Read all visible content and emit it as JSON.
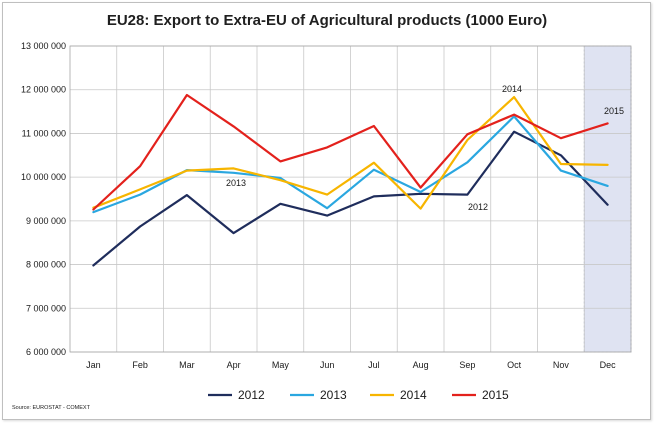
{
  "chart_data": {
    "type": "line",
    "title": "EU28: Export to Extra-EU of Agricultural products (1000 Euro)",
    "source": "Source: EUROSTAT - COMEXT",
    "categories": [
      "Jan",
      "Feb",
      "Mar",
      "Apr",
      "May",
      "Jun",
      "Jul",
      "Aug",
      "Sep",
      "Oct",
      "Nov",
      "Dec"
    ],
    "ylim": [
      6000000,
      13000000
    ],
    "yticks": [
      6000000,
      7000000,
      8000000,
      9000000,
      10000000,
      11000000,
      12000000,
      13000000
    ],
    "ytick_labels": [
      "6 000 000",
      "7 000 000",
      "8 000 000",
      "9 000 000",
      "10 000 000",
      "11 000 000",
      "12 000 000",
      "13 000 000"
    ],
    "grid": true,
    "legend_position": "bottom",
    "shaded_category": "Dec",
    "shade_color": "#dfe3f2",
    "series": [
      {
        "name": "2012",
        "color": "#1f2d5c",
        "values": [
          7980000,
          8870000,
          9590000,
          8720000,
          9390000,
          9120000,
          9560000,
          9620000,
          9600000,
          11040000,
          10500000,
          9370000
        ]
      },
      {
        "name": "2013",
        "color": "#2aa7e0",
        "values": [
          9200000,
          9600000,
          10160000,
          10100000,
          9980000,
          9290000,
          10170000,
          9660000,
          10340000,
          11390000,
          10150000,
          9800000
        ]
      },
      {
        "name": "2014",
        "color": "#f7b500",
        "values": [
          9300000,
          9720000,
          10150000,
          10200000,
          9930000,
          9600000,
          10330000,
          9280000,
          10850000,
          11830000,
          10300000,
          10280000
        ]
      },
      {
        "name": "2015",
        "color": "#e3211c",
        "values": [
          9260000,
          10250000,
          11880000,
          11160000,
          10360000,
          10680000,
          11170000,
          9760000,
          10980000,
          11430000,
          10890000,
          11230000
        ]
      }
    ],
    "annotations": [
      "2013",
      "2012",
      "2014",
      "2015"
    ]
  }
}
